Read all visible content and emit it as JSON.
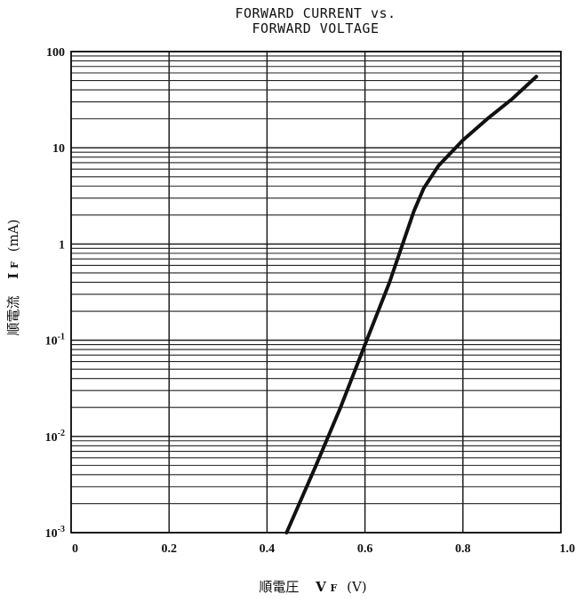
{
  "chart_data": {
    "type": "line",
    "title_lines": [
      "FORWARD CURRENT vs.",
      "FORWARD VOLTAGE"
    ],
    "xlabel": "順電圧 V_F (V)",
    "xlabel_parts": {
      "prefix": "順電圧",
      "symbol": "V",
      "sub": "F",
      "unit": "(V)"
    },
    "ylabel": "順電流 I_F (mA)",
    "ylabel_parts": {
      "prefix": "順電流",
      "symbol": "I",
      "sub": "F",
      "unit": "(mA)"
    },
    "xlim": [
      0,
      1.0
    ],
    "ylim": [
      0.001,
      100
    ],
    "yscale": "log",
    "grid": true,
    "x_ticks": [
      {
        "value": 0,
        "label": "0"
      },
      {
        "value": 0.2,
        "label": "0.2"
      },
      {
        "value": 0.4,
        "label": "0.4"
      },
      {
        "value": 0.6,
        "label": "0.6"
      },
      {
        "value": 0.8,
        "label": "0.8"
      },
      {
        "value": 1.0,
        "label": "1.0"
      }
    ],
    "y_ticks": [
      {
        "value": 100,
        "base": "100",
        "exp": ""
      },
      {
        "value": 10,
        "base": "10",
        "exp": ""
      },
      {
        "value": 1,
        "base": "1",
        "exp": ""
      },
      {
        "value": 0.1,
        "base": "10",
        "exp": "-1"
      },
      {
        "value": 0.01,
        "base": "10",
        "exp": "-2"
      },
      {
        "value": 0.001,
        "base": "10",
        "exp": "-3"
      }
    ],
    "series": [
      {
        "x": [
          0.44,
          0.5,
          0.55,
          0.6,
          0.65,
          0.7,
          0.72,
          0.75,
          0.8,
          0.85,
          0.9,
          0.95
        ],
        "y": [
          0.001,
          0.005,
          0.02,
          0.09,
          0.4,
          2.2,
          3.8,
          6.5,
          12,
          20,
          32,
          55
        ]
      }
    ],
    "line_color": "#111111",
    "grid_color": "#111111"
  }
}
